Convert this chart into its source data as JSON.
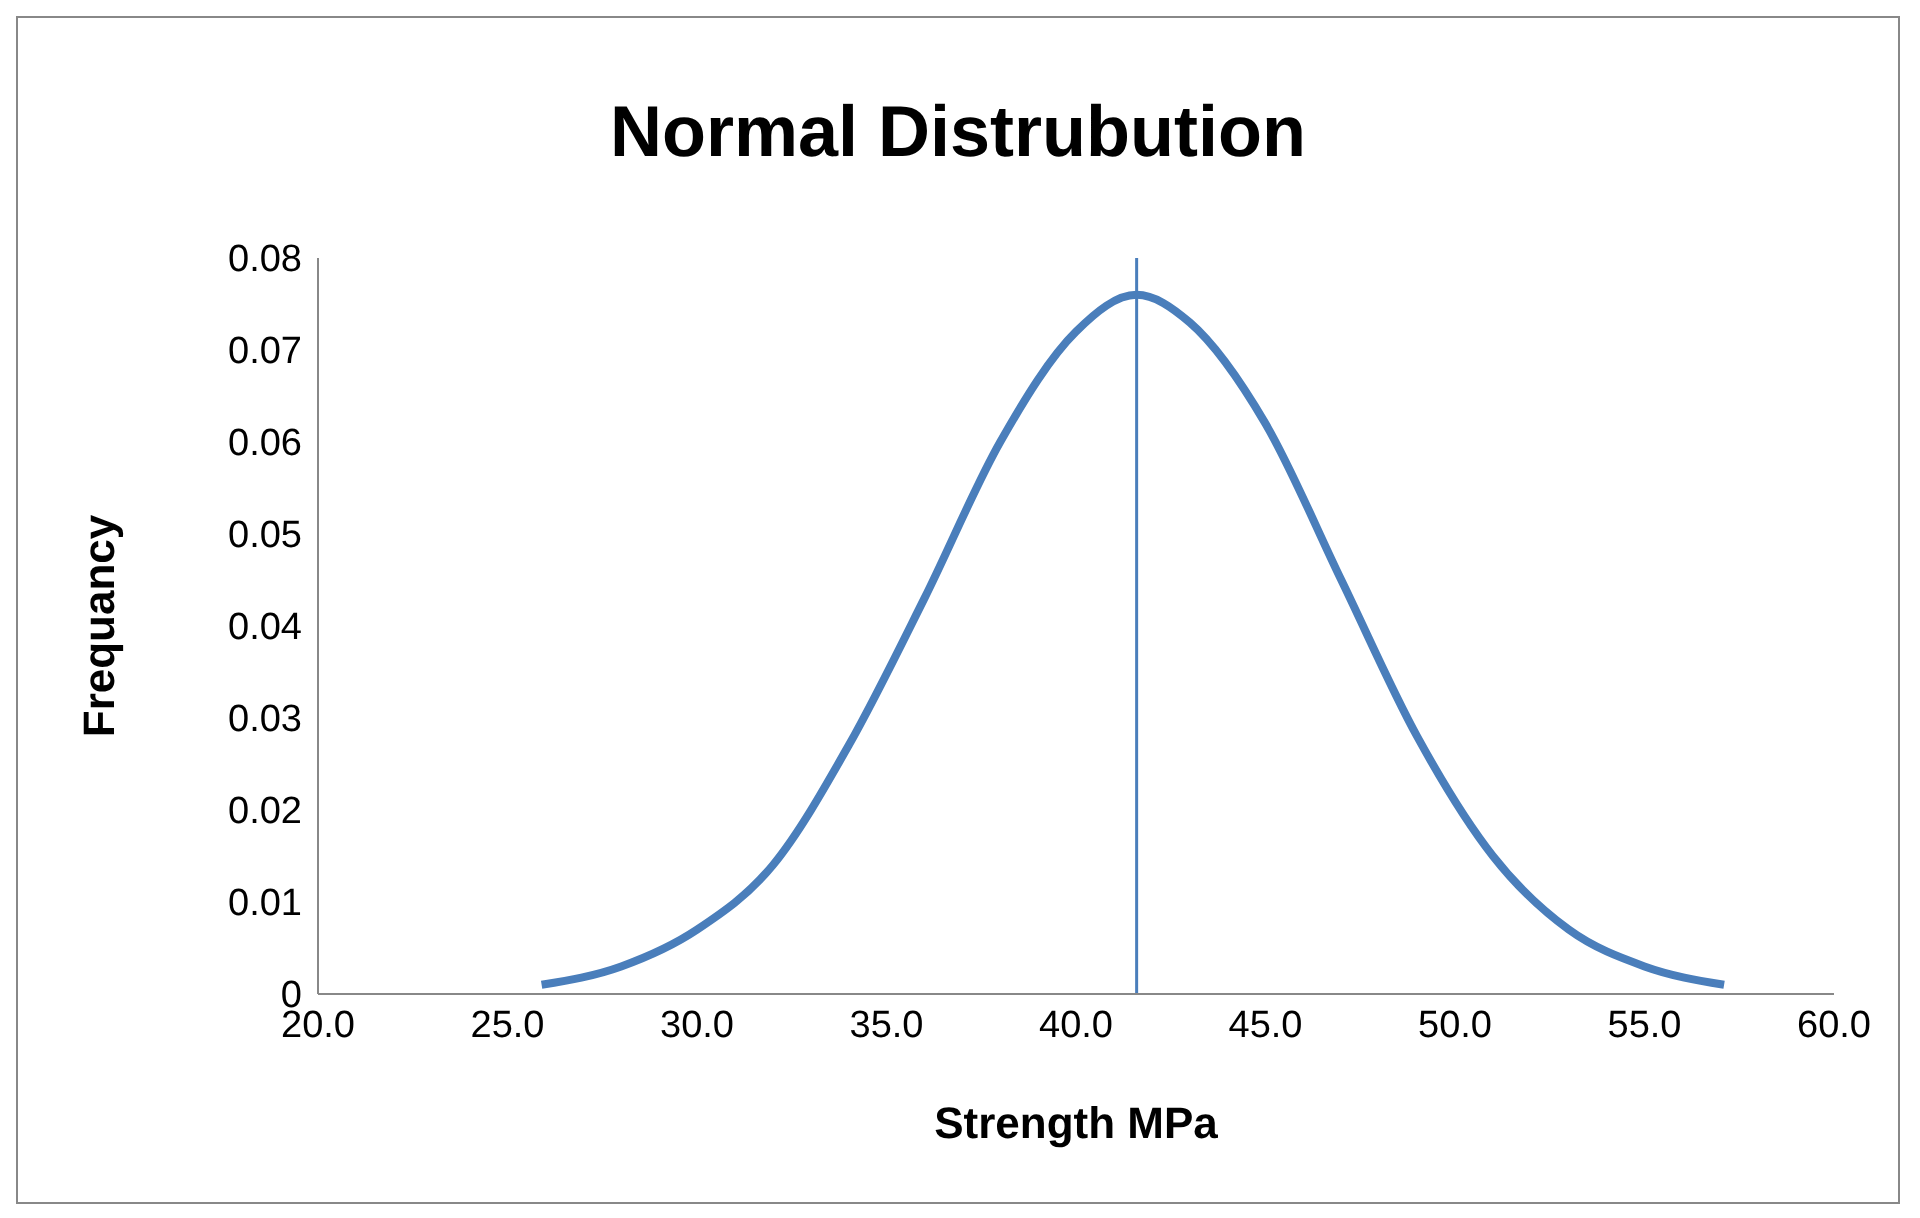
{
  "chart_data": {
    "type": "line",
    "title": "Normal Distrubution",
    "xlabel": "Strength MPa",
    "ylabel": "Frequancy",
    "x": [
      25.9,
      28,
      30,
      32,
      34,
      36,
      38,
      40,
      41.6,
      43,
      45,
      47,
      49,
      51,
      53,
      55,
      57.1
    ],
    "series": [
      {
        "color": "#4a7ebb",
        "values": [
          0.001,
          0.003,
          0.007,
          0.014,
          0.027,
          0.043,
          0.06,
          0.072,
          0.076,
          0.073,
          0.062,
          0.045,
          0.028,
          0.015,
          0.007,
          0.003,
          0.001
        ]
      }
    ],
    "xlim": [
      20,
      60
    ],
    "xticks": [
      {
        "value": 20,
        "label": "20.0"
      },
      {
        "value": 25,
        "label": "25.0"
      },
      {
        "value": 30,
        "label": "30.0"
      },
      {
        "value": 35,
        "label": "35.0"
      },
      {
        "value": 40,
        "label": "40.0"
      },
      {
        "value": 45,
        "label": "45.0"
      },
      {
        "value": 50,
        "label": "50.0"
      },
      {
        "value": 55,
        "label": "55.0"
      },
      {
        "value": 60,
        "label": "60.0"
      }
    ],
    "ylim": [
      0,
      0.08
    ],
    "yticks": [
      0,
      0.01,
      0.02,
      0.03,
      0.04,
      0.05,
      0.06,
      0.07,
      0.08
    ],
    "ref_lines": [
      {
        "axis": "x",
        "value": 41.6,
        "color": "#4a7ebb"
      }
    ],
    "grid": false,
    "legend": false,
    "marker": "none",
    "line_style": "solid"
  }
}
